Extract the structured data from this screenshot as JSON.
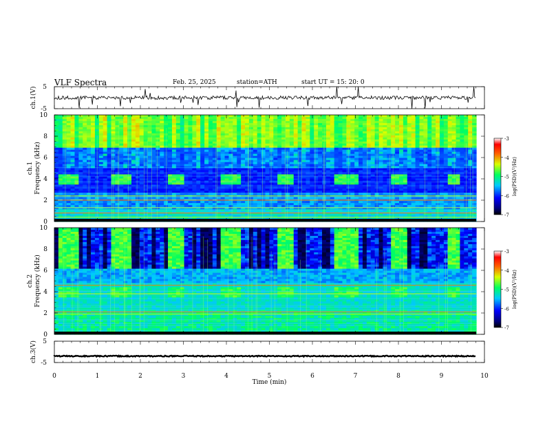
{
  "header": {
    "title": "VLF  Spectra",
    "date": "Feb. 25, 2025",
    "station": "station=ATH",
    "start": "start  UT  =    15: 20: 0"
  },
  "chart_data": [
    {
      "type": "line",
      "panel": "ch1-waveform",
      "ylabel": "ch.1(V)",
      "ylim": [
        -5,
        5
      ],
      "yticks": [
        "5",
        "-5"
      ],
      "xlim": [
        0,
        10
      ],
      "baseline": 0,
      "color": "#000000"
    },
    {
      "type": "heatmap",
      "panel": "ch1-spectrogram",
      "ylabel": "ch.1\nFrequency  (kHz)",
      "ylim": [
        0,
        10
      ],
      "yticks": [
        "0",
        "2",
        "4",
        "6",
        "8",
        "10"
      ],
      "xlim": [
        0,
        9.8
      ],
      "colorbar": {
        "label": "log(PSD)(V²/Hz)",
        "range": [
          -7,
          -3
        ],
        "ticks": [
          "-3",
          "-4",
          "-5",
          "-6",
          "-7"
        ]
      },
      "tone_bursts_min": [
        [
          0.1,
          0.55
        ],
        [
          1.3,
          1.75
        ],
        [
          2.6,
          3.0
        ],
        [
          3.9,
          4.35
        ],
        [
          5.2,
          5.6
        ],
        [
          6.5,
          7.1
        ],
        [
          7.8,
          8.2
        ],
        [
          9.1,
          9.45
        ]
      ],
      "burst_band_khz": [
        3.5,
        4.5
      ],
      "strong_lines_khz": [
        0.4,
        0.8,
        1.3,
        2.0,
        2.4
      ]
    },
    {
      "type": "heatmap",
      "panel": "ch2-spectrogram",
      "ylabel": "ch.2\nFrequency  (kHz)",
      "ylim": [
        0,
        10
      ],
      "yticks": [
        "0",
        "2",
        "4",
        "6",
        "8",
        "10"
      ],
      "xlim": [
        0,
        9.8
      ],
      "colorbar": {
        "label": "log(PSD)(V²/Hz)",
        "range": [
          -7,
          -3
        ],
        "ticks": [
          "-3",
          "-4",
          "-5",
          "-6",
          "-7"
        ]
      },
      "tone_bursts_min": [
        [
          0.1,
          0.55
        ],
        [
          1.3,
          1.75
        ],
        [
          2.6,
          3.0
        ],
        [
          3.9,
          4.35
        ],
        [
          5.2,
          5.6
        ],
        [
          6.5,
          7.1
        ],
        [
          7.8,
          8.2
        ],
        [
          9.1,
          9.45
        ]
      ],
      "burst_band_khz": [
        3.5,
        4.5
      ],
      "strong_lines_khz": [
        1.9,
        2.1,
        3.8,
        4.6
      ]
    },
    {
      "type": "line",
      "panel": "ch3-waveform",
      "ylabel": "ch.3(V)",
      "ylim": [
        -5,
        5
      ],
      "yticks": [
        "5",
        "-5"
      ],
      "xlim": [
        0,
        10
      ],
      "baseline": -2,
      "color": "#000000"
    }
  ],
  "time_axis": {
    "label": "Time  (min)",
    "ticks": [
      "0",
      "1",
      "2",
      "3",
      "4",
      "5",
      "6",
      "7",
      "8",
      "9",
      "10"
    ],
    "range": [
      0,
      10
    ]
  }
}
